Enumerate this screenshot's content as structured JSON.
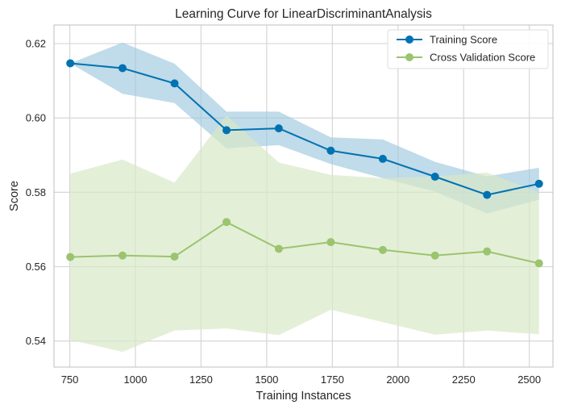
{
  "chart_data": {
    "type": "line",
    "title": "Learning Curve for LinearDiscriminantAnalysis",
    "xlabel": "Training Instances",
    "ylabel": "Score",
    "xlim": [
      690,
      2590
    ],
    "ylim": [
      0.533,
      0.625
    ],
    "xticks": [
      750,
      1000,
      1250,
      1500,
      1750,
      2000,
      2250,
      2500
    ],
    "yticks": [
      0.54,
      0.56,
      0.58,
      0.6,
      0.62
    ],
    "ytick_labels": [
      "0.54",
      "0.56",
      "0.58",
      "0.60",
      "0.62"
    ],
    "grid": true,
    "legend_position": "top-right",
    "x": [
      752,
      951,
      1149,
      1347,
      1546,
      1744,
      1942,
      2141,
      2339,
      2537
    ],
    "series": [
      {
        "name": "Training Score",
        "color": "#0072B2",
        "band_color": "#9ec8dd",
        "values": [
          0.6147,
          0.6134,
          0.6093,
          0.5967,
          0.5972,
          0.5912,
          0.589,
          0.5842,
          0.5793,
          0.5823
        ],
        "upper": [
          0.6147,
          0.6203,
          0.6146,
          0.6017,
          0.6017,
          0.5948,
          0.5942,
          0.5882,
          0.5843,
          0.5866
        ],
        "lower": [
          0.6147,
          0.6065,
          0.604,
          0.5918,
          0.5927,
          0.5876,
          0.5838,
          0.5802,
          0.5743,
          0.578
        ]
      },
      {
        "name": "Cross Validation Score",
        "color": "#9BC46E",
        "band_color": "#d9e8c8",
        "values": [
          0.5626,
          0.563,
          0.5627,
          0.572,
          0.5648,
          0.5666,
          0.5645,
          0.563,
          0.5641,
          0.5609
        ],
        "upper": [
          0.585,
          0.5888,
          0.5826,
          0.6007,
          0.588,
          0.5847,
          0.5838,
          0.5843,
          0.5853,
          0.58
        ],
        "lower": [
          0.5403,
          0.5371,
          0.5428,
          0.5434,
          0.5416,
          0.5484,
          0.5451,
          0.5417,
          0.5428,
          0.5418
        ]
      }
    ]
  }
}
